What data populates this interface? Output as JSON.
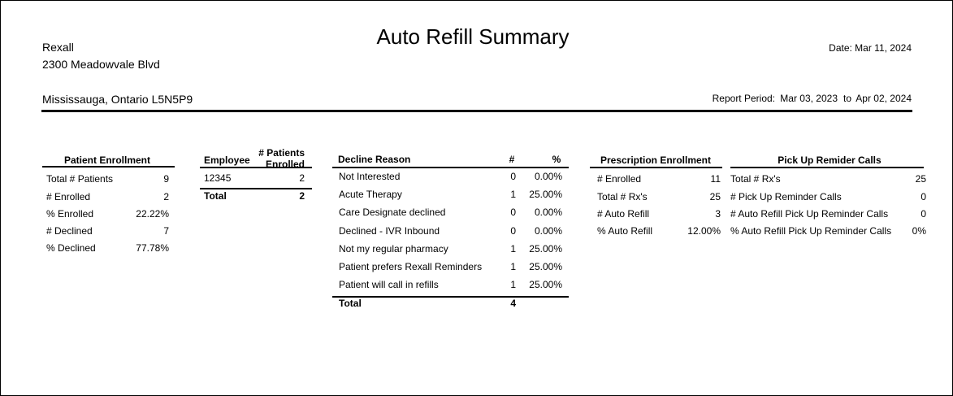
{
  "header": {
    "company": "Rexall",
    "address": "2300 Meadowvale Blvd",
    "city": "Mississauga, Ontario L5N5P9",
    "title": "Auto Refill Summary",
    "date": "Date: Mar 11, 2024",
    "report_period": {
      "label": "Report Period:",
      "start": "Mar 03, 2023",
      "to": "to",
      "end": "Apr 02, 2024"
    }
  },
  "patient_enrollment": {
    "title": "Patient Enrollment",
    "rows": [
      [
        "Total # Patients",
        "9"
      ],
      [
        "# Enrolled",
        "2"
      ],
      [
        "% Enrolled",
        "22.22%"
      ],
      [
        "# Declined",
        "7"
      ],
      [
        "% Declined",
        "77.78%"
      ]
    ]
  },
  "employee": {
    "columns": [
      "Employee",
      "# Patients Enrolled"
    ],
    "rows": [
      [
        "12345",
        "2"
      ]
    ],
    "total": [
      "Total",
      "2"
    ]
  },
  "decline": {
    "columns": [
      "Decline Reason",
      "#",
      "%"
    ],
    "rows": [
      [
        "Not Interested",
        "0",
        "0.00%"
      ],
      [
        "Acute Therapy",
        "1",
        "25.00%"
      ],
      [
        "Care Designate declined",
        "0",
        "0.00%"
      ],
      [
        "Declined - IVR Inbound",
        "0",
        "0.00%"
      ],
      [
        "Not my regular pharmacy",
        "1",
        "25.00%"
      ],
      [
        "Patient prefers Rexall Reminders",
        "1",
        "25.00%"
      ],
      [
        "Patient will call in refills",
        "1",
        "25.00%"
      ]
    ],
    "total": [
      "Total",
      "4"
    ]
  },
  "prescription_enrollment": {
    "title": "Prescription Enrollment",
    "rows": [
      [
        "# Enrolled",
        "11"
      ],
      [
        "Total # Rx's",
        "25"
      ],
      [
        "# Auto Refill",
        "3"
      ],
      [
        "% Auto Refill",
        "12.00%"
      ]
    ]
  },
  "pick_up": {
    "title": "Pick Up Remider Calls",
    "rows": [
      [
        "Total # Rx's",
        "25"
      ],
      [
        "# Pick Up Reminder Calls",
        "0"
      ],
      [
        "# Auto Refill Pick Up Reminder Calls",
        "0"
      ],
      [
        "% Auto Refill Pick Up Reminder Calls",
        "0%"
      ]
    ]
  }
}
